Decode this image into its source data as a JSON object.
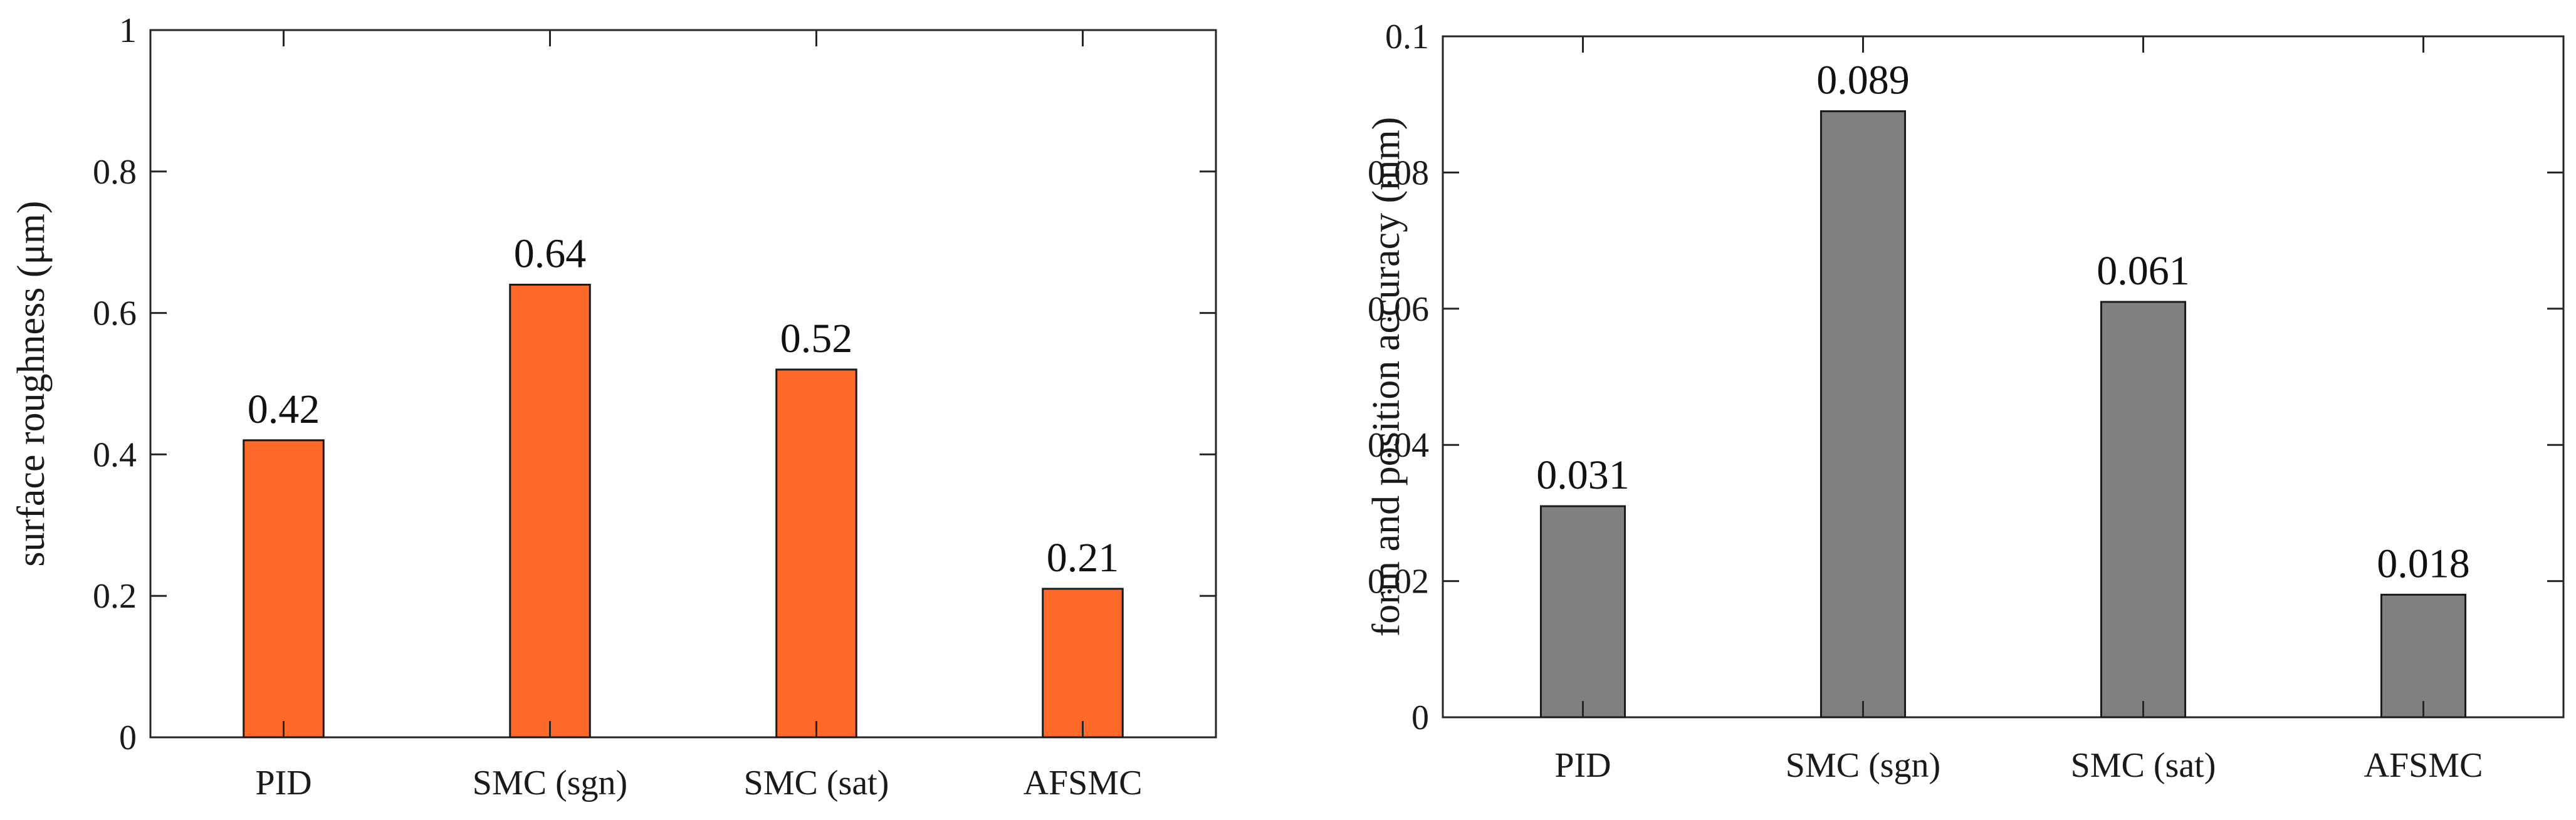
{
  "chart_data": [
    {
      "type": "bar",
      "categories": [
        "PID",
        "SMC (sgn)",
        "SMC (sat)",
        "AFSMC"
      ],
      "values": [
        0.42,
        0.64,
        0.52,
        0.21
      ],
      "value_labels": [
        "0.42",
        "0.64",
        "0.52",
        "0.21"
      ],
      "title": "",
      "xlabel": "",
      "ylabel": "surface roughness (μm)",
      "ylim": [
        0,
        1
      ],
      "yticks": [
        0,
        0.2,
        0.4,
        0.6,
        0.8,
        1
      ],
      "ytick_labels": [
        "0",
        "0.2",
        "0.4",
        "0.6",
        "0.8",
        "1"
      ],
      "bar_color": "#FF6A2B",
      "grid": false
    },
    {
      "type": "bar",
      "categories": [
        "PID",
        "SMC (sgn)",
        "SMC (sat)",
        "AFSMC"
      ],
      "values": [
        0.031,
        0.089,
        0.061,
        0.018
      ],
      "value_labels": [
        "0.031",
        "0.089",
        "0.061",
        "0.018"
      ],
      "title": "",
      "xlabel": "",
      "ylabel": "form and position accuracy (mm)",
      "ylim": [
        0,
        0.1
      ],
      "yticks": [
        0,
        0.02,
        0.04,
        0.06,
        0.08,
        0.1
      ],
      "ytick_labels": [
        "0",
        "0.02",
        "0.04",
        "0.06",
        "0.08",
        "0.1"
      ],
      "bar_color": "#808080",
      "grid": false
    }
  ]
}
